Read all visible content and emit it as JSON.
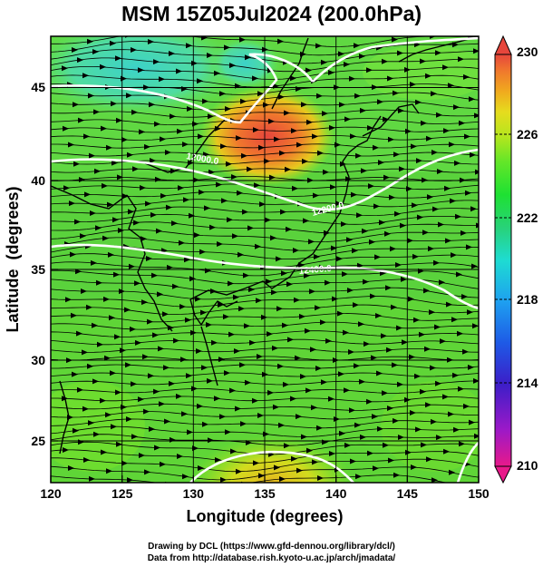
{
  "title": "MSM 15Z05Jul2024 (200.0hPa)",
  "axes": {
    "xlabel": "Longitude (degrees)",
    "ylabel": "Latitude  (degrees)",
    "xlim": [
      120,
      150
    ],
    "ylim": [
      22.5,
      48
    ],
    "x_ticks": [
      "120",
      "125",
      "130",
      "135",
      "140",
      "145",
      "150"
    ],
    "y_ticks": [
      "25",
      "30",
      "35",
      "40",
      "45"
    ]
  },
  "colorbar": {
    "min": 210,
    "max": 230,
    "labels": [
      "230",
      "226",
      "222",
      "218",
      "214",
      "210"
    ],
    "colors": [
      "#e8198a",
      "#9b19c8",
      "#3c1ec8",
      "#1e5ae6",
      "#1ea0f0",
      "#1edcd2",
      "#28d278",
      "#1ee132",
      "#64e628",
      "#b4e61e",
      "#e6dc1e",
      "#f0aa1e",
      "#f0782d",
      "#e6463c"
    ]
  },
  "contours": [
    {
      "label": "12000.0"
    },
    {
      "label": "12200.0"
    },
    {
      "label": "12400.0"
    }
  ],
  "credit": {
    "line1": "Drawing by DCL (https://www.gfd-dennou.org/library/dcl/)",
    "line2": "Data from http://database.rish.kyoto-u.ac.jp/arch/jmadata/"
  }
}
